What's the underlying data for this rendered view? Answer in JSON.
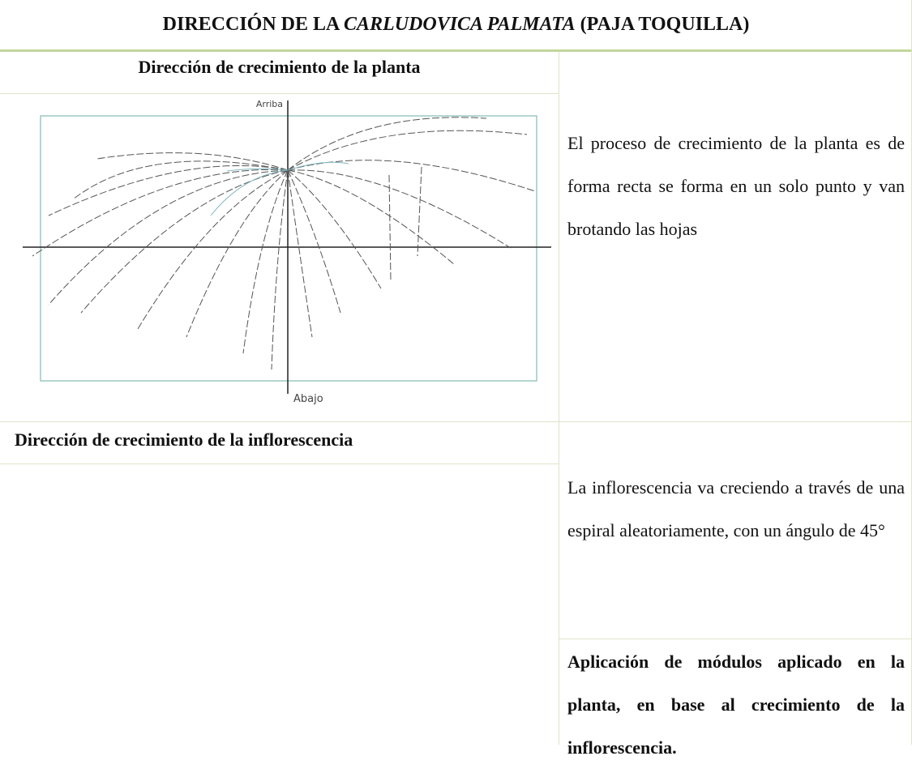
{
  "table": {
    "title": {
      "prefix": "DIRECCIÓN DE LA ",
      "italic": "CARLUDOVICA PALMATA",
      "suffix": " (PAJA TOQUILLA)"
    },
    "rows": [
      {
        "header": "Dirección de crecimiento de la planta",
        "image_labels": {
          "top": "Arriba",
          "bottom": "Abajo"
        },
        "description": "El proceso de crecimiento de la planta es de forma recta se forma en un solo punto y van brotando las hojas"
      },
      {
        "header": "Dirección de crecimiento de la inflorescencia",
        "description": "La inflorescencia va creciendo a través de una espiral aleatoriamente, con un ángulo de 45°",
        "note": "Aplicación de módulos aplicado en la planta, en base al crecimiento de la inflorescencia."
      }
    ]
  }
}
